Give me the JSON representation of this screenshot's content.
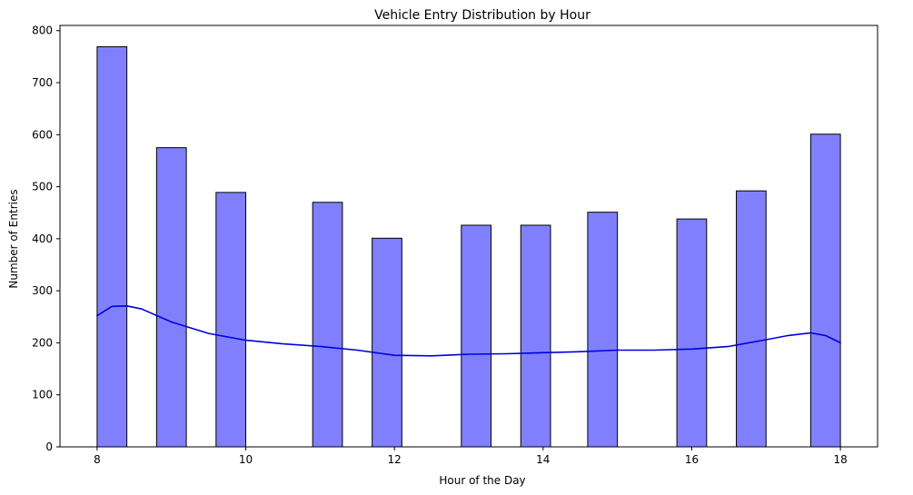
{
  "chart_data": {
    "type": "bar",
    "title": "Vehicle Entry Distribution by Hour",
    "xlabel": "Hour of the Day",
    "ylabel": "Number of Entries",
    "xlim": [
      7.5,
      18.5
    ],
    "ylim": [
      0,
      810
    ],
    "xticks": [
      8,
      10,
      12,
      14,
      16,
      18
    ],
    "yticks": [
      0,
      100,
      200,
      300,
      400,
      500,
      600,
      700,
      800
    ],
    "bin_width": 0.4,
    "bars": [
      {
        "x_start": 8.0,
        "value": 769
      },
      {
        "x_start": 8.8,
        "value": 575
      },
      {
        "x_start": 9.6,
        "value": 489
      },
      {
        "x_start": 10.9,
        "value": 470
      },
      {
        "x_start": 11.7,
        "value": 401
      },
      {
        "x_start": 12.9,
        "value": 426
      },
      {
        "x_start": 13.7,
        "value": 426
      },
      {
        "x_start": 14.6,
        "value": 451
      },
      {
        "x_start": 15.8,
        "value": 438
      },
      {
        "x_start": 16.6,
        "value": 492
      },
      {
        "x_start": 17.6,
        "value": 601
      }
    ],
    "kde": {
      "x": [
        8.0,
        8.2,
        8.4,
        8.6,
        9.0,
        9.5,
        10.0,
        10.5,
        11.0,
        11.5,
        12.0,
        12.5,
        13.0,
        13.5,
        14.0,
        14.5,
        15.0,
        15.5,
        16.0,
        16.5,
        17.0,
        17.3,
        17.6,
        17.8,
        18.0
      ],
      "y": [
        252,
        270,
        271,
        265,
        240,
        218,
        205,
        198,
        193,
        186,
        176,
        175,
        178,
        179,
        181,
        183,
        186,
        186,
        188,
        193,
        206,
        214,
        219,
        214,
        200
      ]
    },
    "grid": false,
    "colors": {
      "bar_fill": "#8080ff",
      "bar_edge": "#000000",
      "kde_line": "#0000dd"
    }
  }
}
